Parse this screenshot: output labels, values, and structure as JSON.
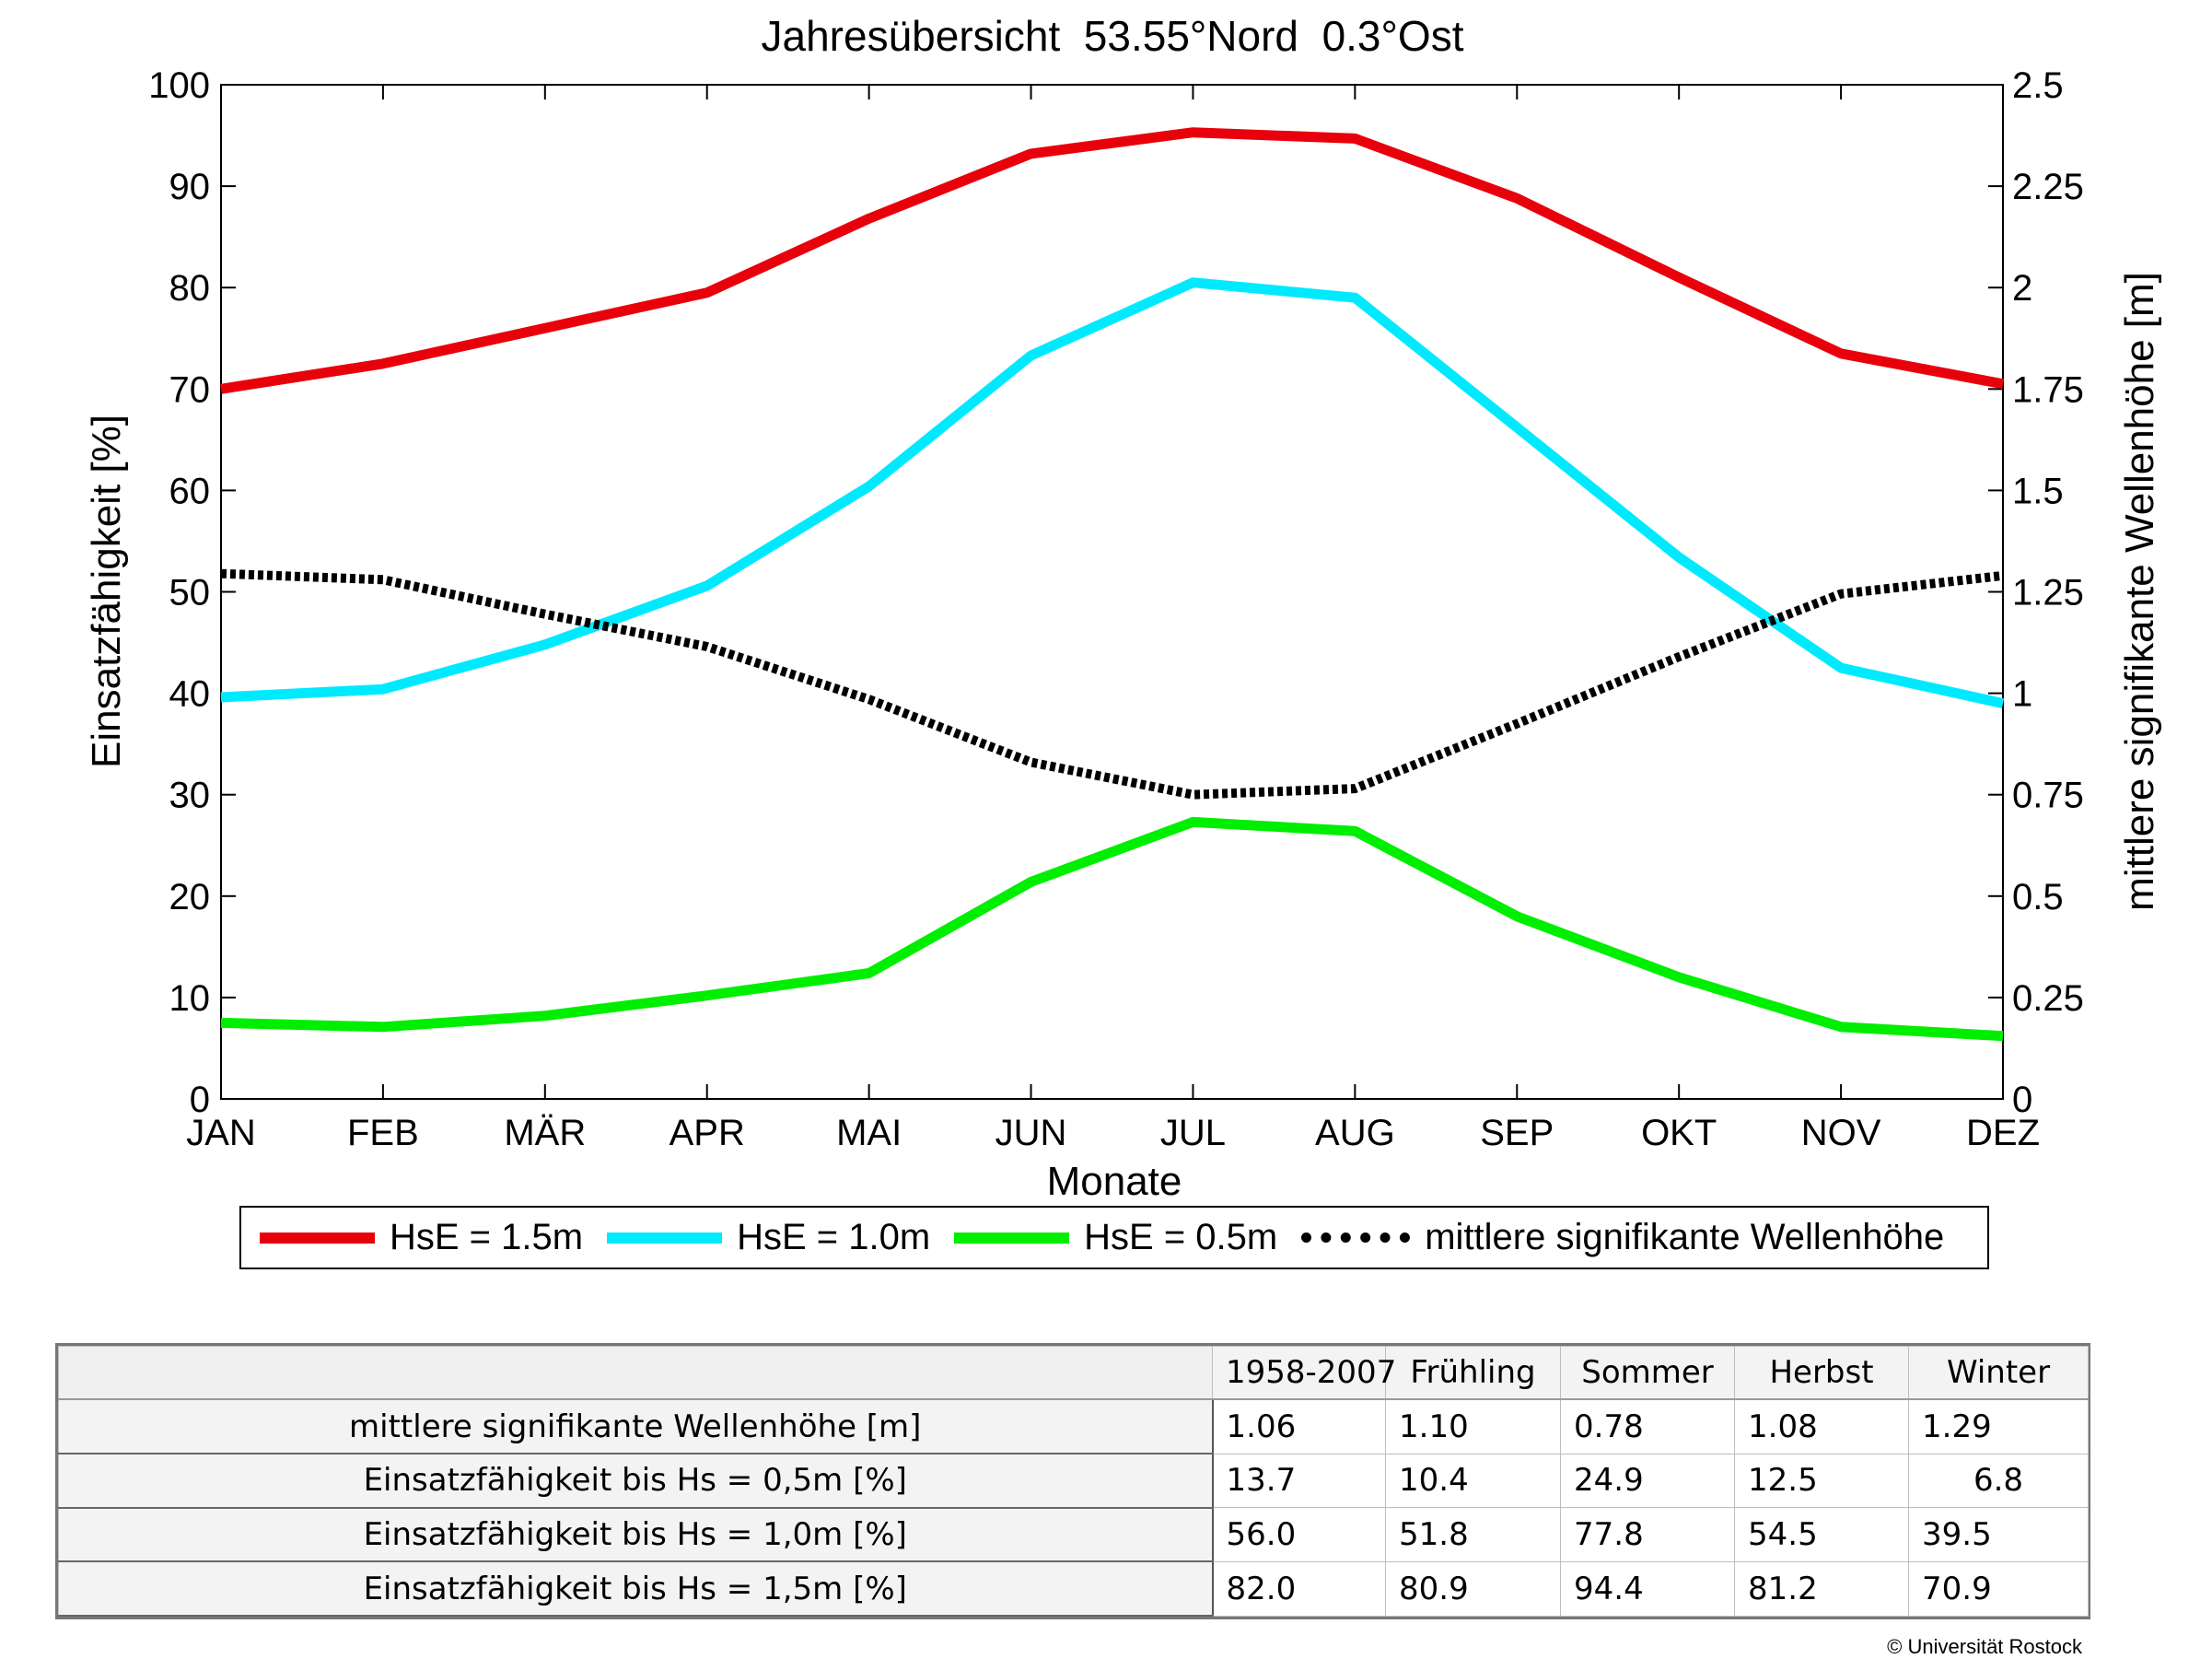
{
  "chart_data": {
    "type": "line",
    "title": "Jahresübersicht  53.55°Nord  0.3°Ost",
    "xlabel": "Monate",
    "ylabel": "Einsatzfähigkeit [%]",
    "y2label": "mittlere signifikante Wellenhöhe [m]",
    "categories": [
      "JAN",
      "FEB",
      "MÄR",
      "APR",
      "MAI",
      "JUN",
      "JUL",
      "AUG",
      "SEP",
      "OKT",
      "NOV",
      "DEZ"
    ],
    "ylim": [
      0,
      100
    ],
    "y2lim": [
      0,
      2.5
    ],
    "yticks": [
      "0",
      "10",
      "20",
      "30",
      "40",
      "50",
      "60",
      "70",
      "80",
      "90",
      "100"
    ],
    "y2ticks": [
      "0",
      "0.25",
      "0.5",
      "0.75",
      "1",
      "1.25",
      "1.5",
      "1.75",
      "2",
      "2.25",
      "2.5"
    ],
    "grid": false,
    "series": [
      {
        "name": "HsE = 1.5m",
        "axis": "left",
        "color": "#e8000b",
        "style": "solid",
        "values": [
          70.0,
          72.5,
          76.0,
          79.5,
          86.8,
          93.2,
          95.3,
          94.7,
          88.8,
          81.0,
          73.5,
          70.5
        ]
      },
      {
        "name": "HsE = 1.0m",
        "axis": "left",
        "color": "#00eaff",
        "style": "solid",
        "values": [
          39.6,
          40.4,
          44.8,
          50.6,
          60.4,
          73.3,
          80.5,
          79.0,
          66.2,
          53.4,
          42.5,
          39.0
        ]
      },
      {
        "name": "HsE = 0.5m",
        "axis": "left",
        "color": "#00ee00",
        "style": "solid",
        "values": [
          7.5,
          7.1,
          8.2,
          10.2,
          12.4,
          21.4,
          27.3,
          26.4,
          18.0,
          12.0,
          7.1,
          6.2
        ]
      },
      {
        "name": "mittlere signifikante Wellenhöhe",
        "axis": "right",
        "color": "#000000",
        "style": "dotted",
        "values": [
          1.295,
          1.28,
          1.195,
          1.115,
          0.985,
          0.83,
          0.75,
          0.765,
          0.925,
          1.09,
          1.245,
          1.29
        ]
      }
    ]
  },
  "stats": {
    "headers": [
      "",
      "1958-2007",
      "Frühling",
      "Sommer",
      "Herbst",
      "Winter"
    ],
    "rows": [
      {
        "label": "mittlere signifikante Wellenhöhe [m]",
        "values": [
          "1.06",
          "1.10",
          "0.78",
          "1.08",
          "1.29"
        ]
      },
      {
        "label": "Einsatzfähigkeit bis Hs = 0,5m [%]",
        "values": [
          "13.7",
          "10.4",
          "24.9",
          "12.5",
          "6.8"
        ]
      },
      {
        "label": "Einsatzfähigkeit bis Hs = 1,0m [%]",
        "values": [
          "56.0",
          "51.8",
          "77.8",
          "54.5",
          "39.5"
        ]
      },
      {
        "label": "Einsatzfähigkeit bis Hs = 1,5m [%]",
        "values": [
          "82.0",
          "80.9",
          "94.4",
          "81.2",
          "70.9"
        ]
      }
    ]
  },
  "copyright": "© Universität Rostock"
}
